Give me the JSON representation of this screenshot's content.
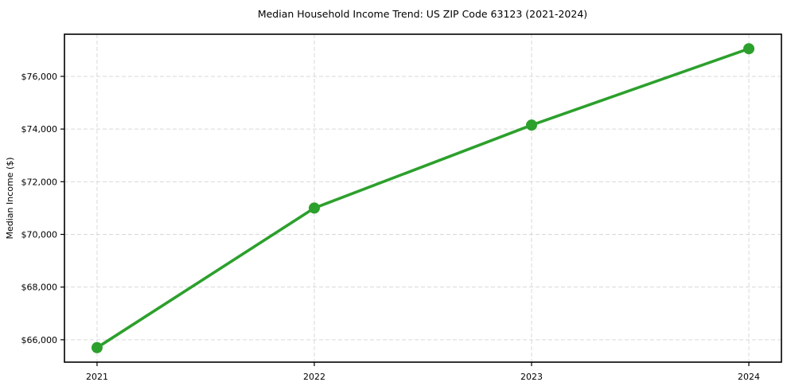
{
  "figure": {
    "background": "#ffffff"
  },
  "chart_data": {
    "type": "line",
    "title": "Median Household Income Trend: US ZIP Code 63123 (2021-2024)",
    "xlabel": "",
    "ylabel": "Median Income ($)",
    "categories": [
      "2021",
      "2022",
      "2023",
      "2024"
    ],
    "series": [
      {
        "name": "Median Household Income",
        "values": [
          65700,
          71000,
          74150,
          77050
        ]
      }
    ],
    "yticks": [
      66000,
      68000,
      70000,
      72000,
      74000,
      76000
    ],
    "ytick_labels": [
      "$66,000",
      "$68,000",
      "$70,000",
      "$72,000",
      "$74,000",
      "$76,000"
    ],
    "ylim": [
      65150,
      77600
    ],
    "xlim": [
      -0.15,
      3.15
    ],
    "grid": "dashed, both axes",
    "legend": "none",
    "style": {
      "line_color": "#2ca02c",
      "marker": "circle",
      "marker_color": "#2ca02c",
      "grid_color": "#d9d9d9",
      "axis_color": "#000000",
      "text_color": "#000000",
      "background": "#ffffff"
    }
  }
}
